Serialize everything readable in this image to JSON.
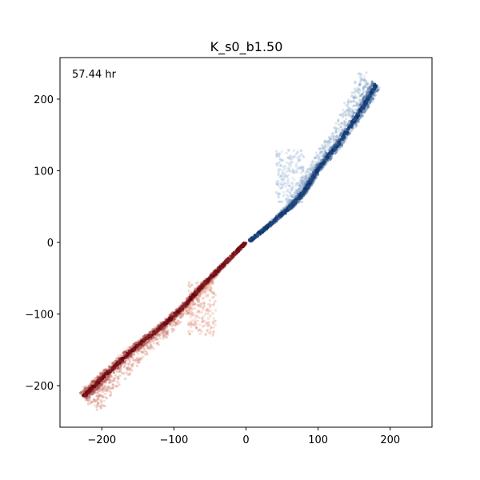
{
  "chart_data": {
    "type": "scatter",
    "title": "K_s0_b1.50",
    "annotation": "57.44 hr",
    "xlabel": "",
    "ylabel": "",
    "xlim": [
      -258,
      258
    ],
    "ylim": [
      -258,
      258
    ],
    "grid": false,
    "legend": "none",
    "x_ticks": [
      -200,
      -100,
      0,
      100,
      200
    ],
    "y_ticks": [
      -200,
      -100,
      0,
      100,
      200
    ],
    "x_tick_labels": [
      "−200",
      "−100",
      "0",
      "100",
      "200"
    ],
    "y_tick_labels": [
      "−200",
      "−100",
      "0",
      "100",
      "200"
    ],
    "series": [
      {
        "colormap": "Blues",
        "color_dark": "#08306b",
        "color_light": "#c6dbef",
        "core_path": [
          [
            5,
            2
          ],
          [
            30,
            22
          ],
          [
            60,
            48
          ],
          [
            80,
            70
          ],
          [
            100,
            103
          ],
          [
            130,
            140
          ],
          [
            160,
            185
          ],
          [
            180,
            220
          ]
        ],
        "cloud_offset_upper": 20,
        "cloud_offset_lower": 4,
        "extra_cluster": {
          "x": [
            42,
            80
          ],
          "y": [
            55,
            130
          ]
        }
      },
      {
        "colormap": "Reds",
        "color_dark": "#67000d",
        "color_light": "#fcbba1",
        "core_path": [
          [
            0,
            0
          ],
          [
            -30,
            -30
          ],
          [
            -60,
            -60
          ],
          [
            -90,
            -93
          ],
          [
            -120,
            -120
          ],
          [
            -160,
            -152
          ],
          [
            -200,
            -190
          ],
          [
            -225,
            -215
          ]
        ],
        "cloud_offset_upper": 4,
        "cloud_offset_lower": 22,
        "extra_cluster": {
          "x": [
            -80,
            -42
          ],
          "y": [
            -130,
            -55
          ]
        }
      }
    ]
  }
}
